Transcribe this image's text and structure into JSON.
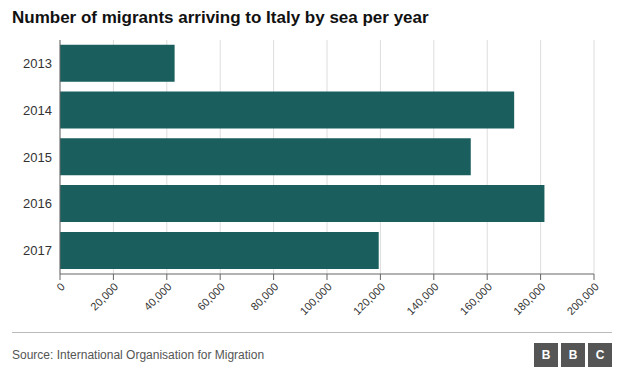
{
  "chart_data": {
    "type": "bar",
    "orientation": "horizontal",
    "title": "Number of migrants arriving to Italy by sea per year",
    "categories": [
      "2013",
      "2014",
      "2015",
      "2016",
      "2017"
    ],
    "values": [
      42925,
      170100,
      153842,
      181436,
      119369
    ],
    "color": "#1a5f5e",
    "xlim": [
      0,
      200000
    ],
    "xticks": [
      0,
      {
        "value": 20000,
        "label": "20,000"
      },
      {
        "value": 40000,
        "label": "40,000"
      },
      {
        "value": 60000,
        "label": "60,000"
      },
      {
        "value": 80000,
        "label": "80,000"
      },
      {
        "value": 100000,
        "label": "100,000"
      },
      {
        "value": 120000,
        "label": "120,000"
      },
      {
        "value": 140000,
        "label": "140,000"
      },
      {
        "value": 160000,
        "label": "160,000"
      },
      {
        "value": 180000,
        "label": "180,000"
      },
      {
        "value": 200000,
        "label": "200,000"
      }
    ],
    "grid": true,
    "annotations": [
      "Source: International Organisation for Migration",
      "B",
      "B",
      "C"
    ]
  }
}
